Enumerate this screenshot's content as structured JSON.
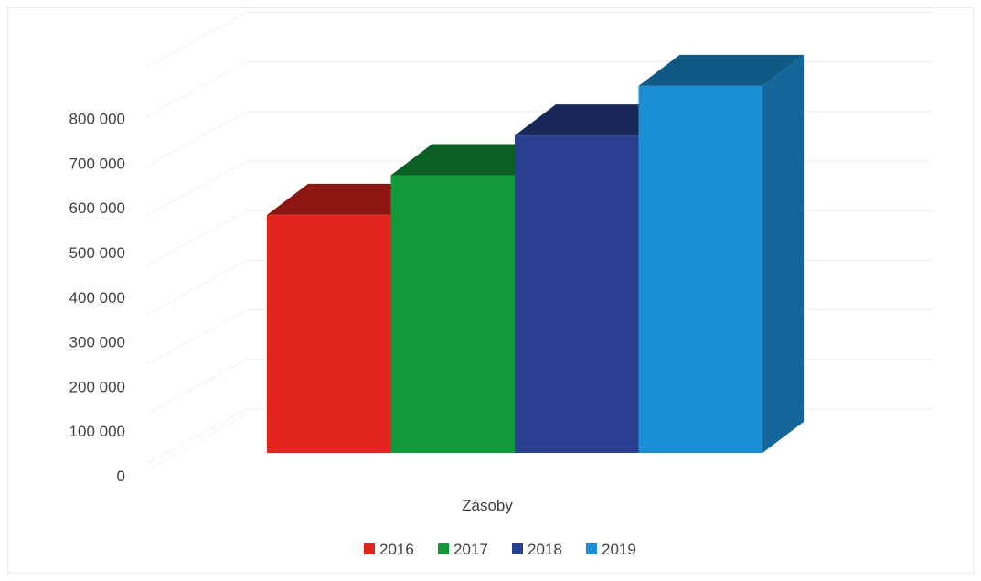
{
  "chart_data": {
    "type": "bar",
    "categories": [
      "Zásoby"
    ],
    "series": [
      {
        "name": "2016",
        "values": [
          480000
        ],
        "color": "#e3241f"
      },
      {
        "name": "2017",
        "values": [
          560000
        ],
        "color": "#129a3a"
      },
      {
        "name": "2018",
        "values": [
          640000
        ],
        "color": "#2a3f8f"
      },
      {
        "name": "2019",
        "values": [
          740000
        ],
        "color": "#1b8fd6"
      }
    ],
    "ylim": [
      0,
      800000
    ],
    "yticks": [
      0,
      100000,
      200000,
      300000,
      400000,
      500000,
      600000,
      700000,
      800000
    ],
    "ytick_labels": [
      "0",
      "100 000",
      "200 000",
      "300 000",
      "400 000",
      "500 000",
      "600 000",
      "700 000",
      "800 000"
    ],
    "grid": true,
    "legend_position": "bottom",
    "style": "3d-clustered-column"
  }
}
